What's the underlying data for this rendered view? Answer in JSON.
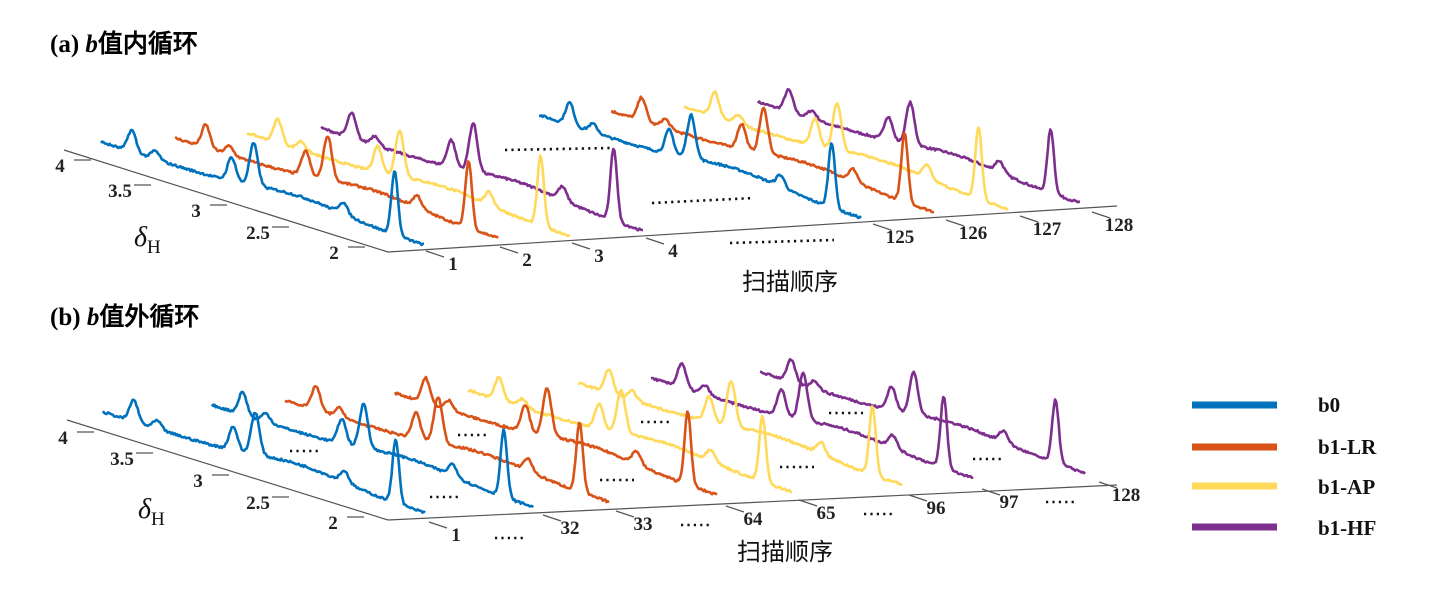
{
  "series": [
    {
      "name": "b0",
      "color": "#0072BD"
    },
    {
      "name": "b1-LR",
      "color": "#D95319"
    },
    {
      "name": "b1-AP",
      "color": "#FFD95A"
    },
    {
      "name": "b1-HF",
      "color": "#7E2F8E"
    }
  ],
  "chart_data": [
    {
      "type": "line",
      "subtype": "3d-waterfall",
      "title": {
        "prefix": "(a) ",
        "symbol": "b",
        "text": "值内循环"
      },
      "ylabel": {
        "symbol": "δ",
        "subscript": "H"
      },
      "yticks": [
        "4",
        "3.5",
        "3",
        "2.5",
        "2"
      ],
      "ylim": [
        1.9,
        4.1
      ],
      "xlabel": "扫描顺序",
      "xticks": [
        "1",
        "2",
        "3",
        "4",
        "125",
        "126",
        "127",
        "128"
      ],
      "x_series": [
        "b0",
        "b1-LR",
        "b1-AP",
        "b1-HF",
        "b0",
        "b1-LR",
        "b1-AP",
        "b1-HF"
      ],
      "peaks_delta_ppm": [
        3.89,
        3.73,
        3.21,
        3.06,
        2.45,
        2.1
      ],
      "peaks_relative_intensity": [
        0.34,
        0.13,
        0.37,
        0.66,
        0.18,
        1.0
      ]
    },
    {
      "type": "line",
      "subtype": "3d-waterfall",
      "title": {
        "prefix": "(b) ",
        "symbol": "b",
        "text": "值外循环"
      },
      "ylabel": {
        "symbol": "δ",
        "subscript": "H"
      },
      "yticks": [
        "4",
        "3.5",
        "3",
        "2.5",
        "2"
      ],
      "ylim": [
        1.9,
        4.1
      ],
      "xlabel": "扫描顺序",
      "xticks": [
        "1",
        "32",
        "33",
        "64",
        "65",
        "96",
        "97",
        "128"
      ],
      "x_series": [
        "b0",
        "b0",
        "b1-LR",
        "b1-LR",
        "b1-AP",
        "b1-AP",
        "b1-HF",
        "b1-HF"
      ],
      "peaks_delta_ppm": [
        3.89,
        3.73,
        3.21,
        3.06,
        2.45,
        2.1
      ],
      "peaks_relative_intensity": [
        0.34,
        0.13,
        0.37,
        0.66,
        0.18,
        1.0
      ]
    }
  ]
}
